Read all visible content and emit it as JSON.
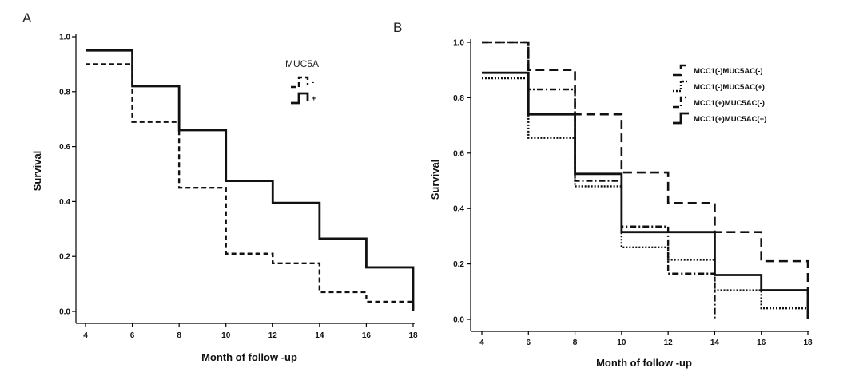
{
  "chart_data": [
    {
      "type": "line",
      "panel_label": "A",
      "xlabel": "Month of follow -up",
      "ylabel": "Survival",
      "xlim": [
        4,
        18
      ],
      "ylim": [
        0,
        1.0
      ],
      "x_ticks": [
        "4",
        "6",
        "8",
        "10",
        "12",
        "14",
        "16",
        "18"
      ],
      "y_ticks": [
        "0.0",
        "0.2",
        "0.4",
        "0.6",
        "0.8",
        "1.0"
      ],
      "legend_title": "MUC5A",
      "legend_placement": "top-right",
      "grid": false,
      "series": [
        {
          "name": "-",
          "style": "dashed",
          "x": [
            4,
            6,
            8,
            10,
            12,
            14,
            16,
            18
          ],
          "y": [
            0.9,
            0.69,
            0.45,
            0.21,
            0.175,
            0.07,
            0.035,
            0.0
          ]
        },
        {
          "name": "+",
          "style": "solid",
          "x": [
            4,
            6,
            8,
            10,
            12,
            14,
            16,
            18
          ],
          "y": [
            0.95,
            0.82,
            0.66,
            0.475,
            0.395,
            0.265,
            0.16,
            0.0
          ]
        }
      ]
    },
    {
      "type": "line",
      "panel_label": "B",
      "xlabel": "Month of follow -up",
      "ylabel": "Survival",
      "xlim": [
        4,
        18
      ],
      "ylim": [
        0,
        1.0
      ],
      "x_ticks": [
        "4",
        "6",
        "8",
        "10",
        "12",
        "14",
        "16",
        "18"
      ],
      "y_ticks": [
        "0.0",
        "0.2",
        "0.4",
        "0.6",
        "0.8",
        "1.0"
      ],
      "legend_placement": "top-right",
      "grid": false,
      "series": [
        {
          "name": "MCC1(-)MUC5AC(-)",
          "style": "longdash",
          "x": [
            4,
            6,
            8,
            10,
            12,
            14,
            16,
            18
          ],
          "y": [
            1.0,
            0.9,
            0.74,
            0.53,
            0.42,
            0.315,
            0.21,
            0.0
          ]
        },
        {
          "name": "MCC1(-)MUC5AC(+)",
          "style": "dotted",
          "x": [
            4,
            6,
            8,
            10,
            12,
            14,
            16,
            18
          ],
          "y": [
            0.87,
            0.655,
            0.48,
            0.26,
            0.215,
            0.105,
            0.04,
            0.0
          ]
        },
        {
          "name": "MCC1(+)MUC5AC(-)",
          "style": "dashdot",
          "x": [
            4,
            6,
            8,
            10,
            12,
            14
          ],
          "y": [
            1.0,
            0.83,
            0.5,
            0.335,
            0.165,
            0.0
          ]
        },
        {
          "name": "MCC1(+)MUC5AC(+)",
          "style": "solid",
          "x": [
            4,
            6,
            8,
            10,
            12,
            14,
            16,
            18
          ],
          "y": [
            0.89,
            0.74,
            0.525,
            0.315,
            0.315,
            0.16,
            0.105,
            0.0
          ]
        }
      ]
    }
  ]
}
